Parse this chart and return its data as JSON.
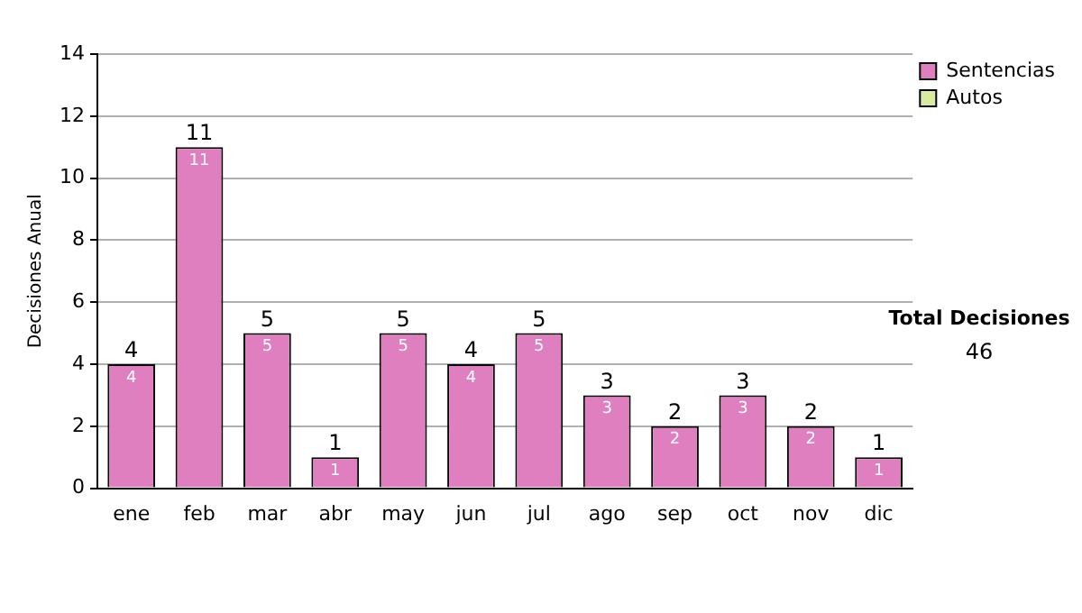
{
  "chart_data": {
    "type": "bar",
    "ylabel": "Decisiones Anual",
    "categories": [
      "ene",
      "feb",
      "mar",
      "abr",
      "may",
      "jun",
      "jul",
      "ago",
      "sep",
      "oct",
      "nov",
      "dic"
    ],
    "series": [
      {
        "name": "Sentencias",
        "color": "#e07fc0",
        "values": [
          4,
          11,
          5,
          1,
          5,
          4,
          5,
          3,
          2,
          3,
          2,
          1
        ]
      },
      {
        "name": "Autos",
        "color": "#d8eca0",
        "values": [
          null,
          null,
          null,
          null,
          null,
          null,
          null,
          null,
          null,
          null,
          null,
          null
        ]
      }
    ],
    "stacked": true,
    "data_labels": true,
    "totals": [
      "4",
      "11",
      "5",
      "1",
      "5",
      "4",
      "5",
      "3",
      "2",
      "3",
      "2",
      "1"
    ],
    "ylim": [
      0,
      14
    ],
    "yticks": [
      0,
      2,
      4,
      6,
      8,
      10,
      12,
      14
    ],
    "grid": "y",
    "legend": "right",
    "annotations": [
      "Total Decisiones",
      "46"
    ]
  }
}
